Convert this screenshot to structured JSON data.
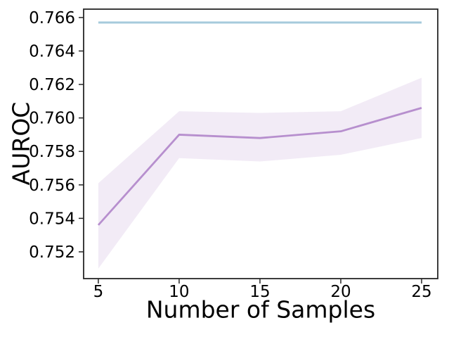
{
  "figure": {
    "background": "#ffffff"
  },
  "chart_data": {
    "type": "line",
    "title": "",
    "xlabel": "Number of Samples",
    "ylabel": "AUROC",
    "x": [
      5,
      10,
      15,
      20,
      25
    ],
    "series": [
      {
        "name": "baseline-constant-line",
        "color": "#a6cbdc",
        "line_width": 3,
        "values": [
          0.7657,
          0.7657,
          0.7657,
          0.7657,
          0.7657
        ]
      },
      {
        "name": "sampled-auroc-line",
        "color": "#b78fce",
        "line_width": 2.8,
        "values": [
          0.7536,
          0.759,
          0.7588,
          0.7592,
          0.7606
        ],
        "band_lower": [
          0.751,
          0.7576,
          0.7574,
          0.7578,
          0.7588
        ],
        "band_upper": [
          0.7561,
          0.7604,
          0.7603,
          0.7604,
          0.7624
        ],
        "band_color": "#b78fce",
        "band_opacity": 0.18
      }
    ],
    "xlim": [
      4.09,
      26.0
    ],
    "ylim": [
      0.7504,
      0.7665
    ],
    "x_ticks": [
      5,
      10,
      15,
      20,
      25
    ],
    "y_ticks": [
      0.752,
      0.754,
      0.756,
      0.758,
      0.76,
      0.762,
      0.764,
      0.766
    ],
    "y_tick_decimals": 3,
    "grid": false,
    "legend": "none"
  },
  "style": {
    "spine_color": "#262626",
    "tick_color": "#262626",
    "tick_label_color": "#000000",
    "tick_label_size": 23,
    "axis_label_size": 33
  }
}
